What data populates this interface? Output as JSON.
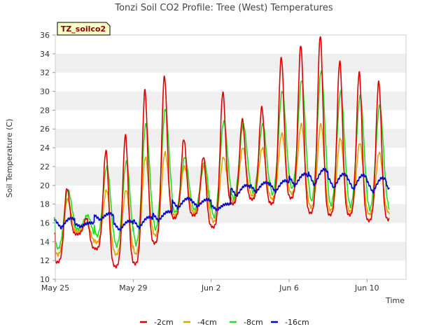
{
  "chart_data": {
    "type": "line",
    "title": "Tonzi Soil CO2 Profile: Tree (West) Temperatures",
    "xlabel": "Time",
    "ylabel": "Soil Temperature (C)",
    "badge": "TZ_soilco2",
    "ylim": [
      10,
      36
    ],
    "yticks": [
      "10",
      "12",
      "14",
      "16",
      "18",
      "20",
      "22",
      "24",
      "26",
      "28",
      "30",
      "32",
      "34",
      "36"
    ],
    "xlim": [
      "2023-05-25",
      "2023-06-12"
    ],
    "xticks": [
      {
        "date": "2023-05-25",
        "label": "May 25"
      },
      {
        "date": "2023-05-29",
        "label": "May 29"
      },
      {
        "date": "2023-06-02",
        "label": "Jun 2"
      },
      {
        "date": "2023-06-06",
        "label": "Jun 6"
      },
      {
        "date": "2023-06-10",
        "label": "Jun 10"
      }
    ],
    "grid": "horizontal alternating bands",
    "legend_position": "bottom",
    "x": [
      "2023-05-25",
      "2023-05-26",
      "2023-05-27",
      "2023-05-28",
      "2023-05-29",
      "2023-05-30",
      "2023-05-31",
      "2023-06-01",
      "2023-06-02",
      "2023-06-03",
      "2023-06-04",
      "2023-06-05",
      "2023-06-06",
      "2023-06-07",
      "2023-06-08",
      "2023-06-09",
      "2023-06-10",
      "2023-06-11"
    ],
    "series": [
      {
        "name": "-2cm",
        "color": "#dd0000",
        "daily_min": [
          11.8,
          14.8,
          13.2,
          11.3,
          11.6,
          13.8,
          16.5,
          16.8,
          15.5,
          18.0,
          18.5,
          18.0,
          18.6,
          17.0,
          16.8,
          16.8,
          16.2,
          16.3
        ],
        "daily_max": [
          19.7,
          16.5,
          23.7,
          25.3,
          30.1,
          31.6,
          24.9,
          23.0,
          29.9,
          27.0,
          28.3,
          33.6,
          34.9,
          35.9,
          33.2,
          32.0,
          31.0,
          31.7
        ]
      },
      {
        "name": "-4cm",
        "color": "#e8a000",
        "daily_min": [
          12.5,
          15.1,
          13.8,
          12.5,
          12.5,
          14.5,
          16.7,
          17.0,
          16.0,
          18.2,
          18.8,
          18.4,
          19.0,
          17.5,
          17.2,
          17.1,
          16.8,
          16.9
        ],
        "daily_max": [
          18.5,
          16.0,
          19.5,
          19.5,
          23.0,
          23.5,
          22.0,
          22.0,
          23.0,
          24.0,
          24.0,
          25.5,
          26.5,
          26.5,
          25.0,
          24.5,
          23.5,
          24.9
        ]
      },
      {
        "name": "-8cm",
        "color": "#22dd22",
        "daily_min": [
          13.0,
          15.3,
          14.3,
          13.2,
          13.2,
          14.8,
          16.9,
          17.2,
          16.2,
          18.3,
          19.0,
          18.6,
          19.2,
          17.8,
          17.4,
          17.3,
          17.0,
          17.1
        ],
        "daily_max": [
          19.5,
          16.8,
          22.0,
          22.5,
          26.5,
          28.1,
          23.0,
          22.5,
          26.8,
          26.5,
          26.5,
          30.0,
          31.2,
          32.2,
          30.0,
          29.5,
          28.5,
          28.7
        ]
      },
      {
        "name": "-16cm",
        "color": "#0000cc",
        "daily_min": [
          14.7,
          15.3,
          15.8,
          14.5,
          14.6,
          15.5,
          16.8,
          17.2,
          16.9,
          18.0,
          18.5,
          18.4,
          19.0,
          18.7,
          18.6,
          18.4,
          18.1,
          18.3
        ],
        "daily_max": [
          16.5,
          16.0,
          17.0,
          16.2,
          16.6,
          17.2,
          18.6,
          18.5,
          18.0,
          20.0,
          20.3,
          20.5,
          21.2,
          21.7,
          21.2,
          21.1,
          20.8,
          20.2
        ]
      }
    ]
  }
}
